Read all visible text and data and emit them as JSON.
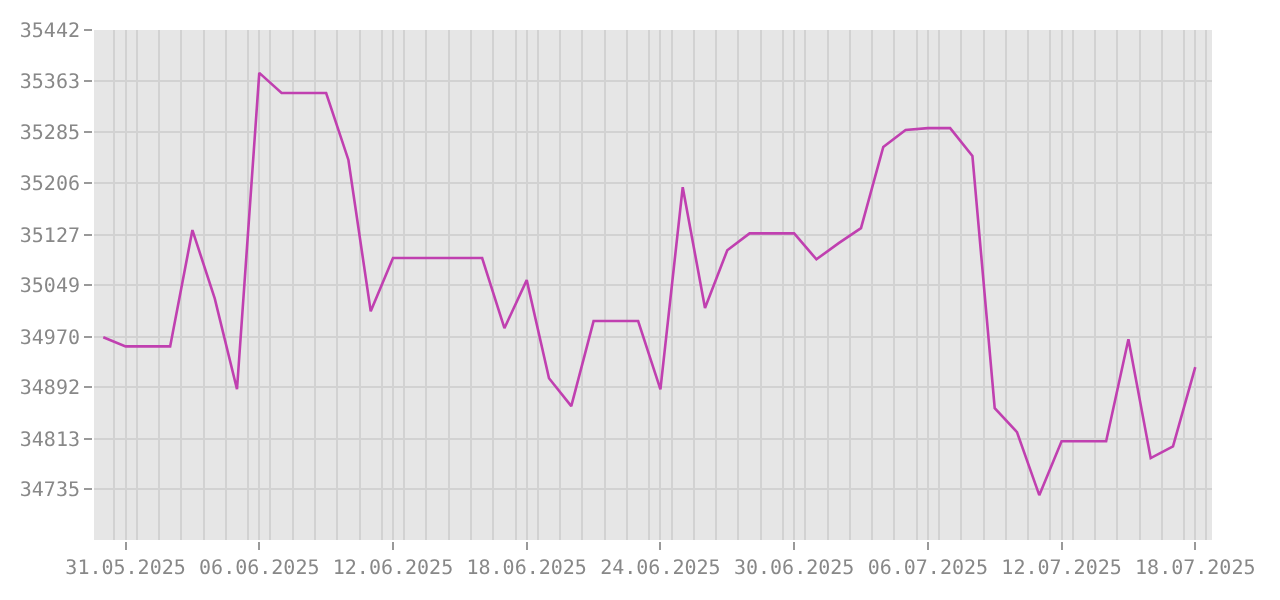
{
  "chart_data": {
    "type": "line",
    "x": [
      "2025-05-30",
      "2025-05-31",
      "2025-06-01",
      "2025-06-02",
      "2025-06-03",
      "2025-06-04",
      "2025-06-05",
      "2025-06-06",
      "2025-06-07",
      "2025-06-08",
      "2025-06-09",
      "2025-06-10",
      "2025-06-11",
      "2025-06-12",
      "2025-06-13",
      "2025-06-14",
      "2025-06-15",
      "2025-06-16",
      "2025-06-17",
      "2025-06-18",
      "2025-06-19",
      "2025-06-20",
      "2025-06-21",
      "2025-06-22",
      "2025-06-23",
      "2025-06-24",
      "2025-06-25",
      "2025-06-26",
      "2025-06-27",
      "2025-06-28",
      "2025-06-29",
      "2025-06-30",
      "2025-07-01",
      "2025-07-02",
      "2025-07-03",
      "2025-07-04",
      "2025-07-05",
      "2025-07-06",
      "2025-07-07",
      "2025-07-08",
      "2025-07-09",
      "2025-07-10",
      "2025-07-11",
      "2025-07-12",
      "2025-07-13",
      "2025-07-14",
      "2025-07-15",
      "2025-07-16",
      "2025-07-17",
      "2025-07-18"
    ],
    "series": [
      {
        "color": "#c040b0",
        "values": [
          34969,
          34955,
          34955,
          34955,
          35134,
          35029,
          34889,
          35376,
          35345,
          35345,
          35345,
          35242,
          35009,
          35091,
          35091,
          35091,
          35091,
          35091,
          34983,
          35057,
          34906,
          34863,
          34994,
          34994,
          34994,
          34889,
          35200,
          35014,
          35103,
          35129,
          35129,
          35129,
          35089,
          35114,
          35137,
          35262,
          35288,
          35291,
          35291,
          35248,
          34860,
          34823,
          34726,
          34809,
          34809,
          34809,
          34966,
          34783,
          34801,
          34923
        ]
      }
    ],
    "xlim": [
      "2025-05-29T14:00",
      "2025-07-18T18:00"
    ],
    "xticks": [
      {
        "value": "2025-05-31",
        "label": "31.05.2025"
      },
      {
        "value": "2025-06-06",
        "label": "06.06.2025"
      },
      {
        "value": "2025-06-12",
        "label": "12.06.2025"
      },
      {
        "value": "2025-06-18",
        "label": "18.06.2025"
      },
      {
        "value": "2025-06-24",
        "label": "24.06.2025"
      },
      {
        "value": "2025-06-30",
        "label": "30.06.2025"
      },
      {
        "value": "2025-07-06",
        "label": "06.07.2025"
      },
      {
        "value": "2025-07-12",
        "label": "12.07.2025"
      },
      {
        "value": "2025-07-18",
        "label": "18.07.2025"
      }
    ],
    "ylim": [
      34657,
      35442
    ],
    "yticks": [
      35442,
      35363,
      35285,
      35206,
      35127,
      35049,
      34970,
      34892,
      34813,
      34735
    ],
    "grid": true,
    "legend": false,
    "marker": "none",
    "line_style": "solid"
  }
}
